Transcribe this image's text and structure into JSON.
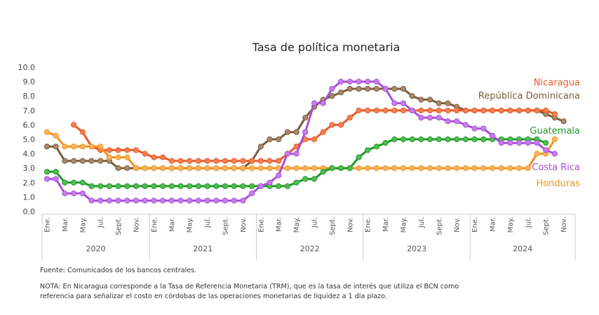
{
  "chart_data": {
    "type": "line",
    "title": "Tasa de política monetaria",
    "xlabel": "",
    "ylabel": "",
    "ylim": [
      0,
      10
    ],
    "yticks": [
      "0.0",
      "1.0",
      "2.0",
      "3.0",
      "4.0",
      "5.0",
      "6.0",
      "7.0",
      "8.0",
      "9.0",
      "10.0"
    ],
    "grid": false,
    "x_start": "Ene. 2020",
    "x_frequency": "monthly",
    "month_labels": [
      "Ene.",
      "Mar.",
      "May.",
      "Jul.",
      "Sept.",
      "Nov."
    ],
    "years": [
      "2020",
      "2021",
      "2022",
      "2023",
      "2024"
    ],
    "series": [
      {
        "name": "República Dominicana",
        "color": "#7b5b3a",
        "fill": "#a88a6a",
        "values": [
          4.5,
          4.5,
          3.5,
          3.5,
          3.5,
          3.5,
          3.5,
          3.5,
          3.0,
          3.0,
          3.0,
          3.0,
          3.0,
          3.0,
          3.0,
          3.0,
          3.0,
          3.0,
          3.0,
          3.0,
          3.0,
          3.0,
          3.0,
          3.5,
          4.5,
          5.0,
          5.0,
          5.5,
          5.5,
          6.5,
          7.25,
          7.75,
          8.0,
          8.25,
          8.5,
          8.5,
          8.5,
          8.5,
          8.5,
          8.5,
          8.5,
          8.0,
          7.75,
          7.75,
          7.5,
          7.5,
          7.25,
          7.0,
          7.0,
          7.0,
          7.0,
          7.0,
          7.0,
          7.0,
          7.0,
          7.0,
          6.75,
          6.5,
          6.25
        ]
      },
      {
        "name": "Nicaragua",
        "color": "#e8592a",
        "fill": "#f5814f",
        "values": [
          null,
          null,
          null,
          6.0,
          5.5,
          4.5,
          4.25,
          4.25,
          4.25,
          4.25,
          4.25,
          4.0,
          3.75,
          3.75,
          3.5,
          3.5,
          3.5,
          3.5,
          3.5,
          3.5,
          3.5,
          3.5,
          3.5,
          3.5,
          3.5,
          3.5,
          3.5,
          4.0,
          4.5,
          5.0,
          5.0,
          5.5,
          6.0,
          6.0,
          6.5,
          7.0,
          7.0,
          7.0,
          7.0,
          7.0,
          7.0,
          7.0,
          7.0,
          7.0,
          7.0,
          7.0,
          7.0,
          7.0,
          7.0,
          7.0,
          7.0,
          7.0,
          7.0,
          7.0,
          7.0,
          7.0,
          7.0,
          6.75,
          null
        ]
      },
      {
        "name": "Honduras",
        "color": "#f0921a",
        "fill": "#f8b563",
        "values": [
          5.5,
          5.25,
          4.5,
          4.5,
          4.5,
          4.5,
          4.5,
          3.75,
          3.75,
          3.75,
          3.0,
          3.0,
          3.0,
          3.0,
          3.0,
          3.0,
          3.0,
          3.0,
          3.0,
          3.0,
          3.0,
          3.0,
          3.0,
          3.0,
          3.0,
          3.0,
          3.0,
          3.0,
          3.0,
          3.0,
          3.0,
          3.0,
          3.0,
          3.0,
          3.0,
          3.0,
          3.0,
          3.0,
          3.0,
          3.0,
          3.0,
          3.0,
          3.0,
          3.0,
          3.0,
          3.0,
          3.0,
          3.0,
          3.0,
          3.0,
          3.0,
          3.0,
          3.0,
          3.0,
          3.0,
          4.0,
          4.0,
          5.0,
          null
        ]
      },
      {
        "name": "Guatemala",
        "color": "#23962a",
        "fill": "#4cc04c",
        "values": [
          2.75,
          2.75,
          2.0,
          2.0,
          2.0,
          1.75,
          1.75,
          1.75,
          1.75,
          1.75,
          1.75,
          1.75,
          1.75,
          1.75,
          1.75,
          1.75,
          1.75,
          1.75,
          1.75,
          1.75,
          1.75,
          1.75,
          1.75,
          1.75,
          1.75,
          1.75,
          1.75,
          1.75,
          2.0,
          2.25,
          2.25,
          2.75,
          3.0,
          3.0,
          3.0,
          3.75,
          4.25,
          4.5,
          4.75,
          5.0,
          5.0,
          5.0,
          5.0,
          5.0,
          5.0,
          5.0,
          5.0,
          5.0,
          5.0,
          5.0,
          5.0,
          5.0,
          5.0,
          5.0,
          5.0,
          5.0,
          4.75,
          null,
          null
        ]
      },
      {
        "name": "Costa Rica",
        "color": "#a94fd6",
        "fill": "#c57ff0",
        "values": [
          2.25,
          2.25,
          1.25,
          1.25,
          1.25,
          0.75,
          0.75,
          0.75,
          0.75,
          0.75,
          0.75,
          0.75,
          0.75,
          0.75,
          0.75,
          0.75,
          0.75,
          0.75,
          0.75,
          0.75,
          0.75,
          0.75,
          0.75,
          1.25,
          1.75,
          2.0,
          2.5,
          4.0,
          4.0,
          5.5,
          7.5,
          7.5,
          8.5,
          9.0,
          9.0,
          9.0,
          9.0,
          9.0,
          8.5,
          7.5,
          7.5,
          7.0,
          6.5,
          6.5,
          6.5,
          6.25,
          6.25,
          6.0,
          5.75,
          5.75,
          5.25,
          4.75,
          4.75,
          4.75,
          4.75,
          4.75,
          4.25,
          4.0,
          null
        ]
      }
    ],
    "legend": {
      "placement": "right-end-labels",
      "labels": [
        "Nicaragua",
        "República Dominicana",
        "Guatemala",
        "Costa Rica",
        "Honduras"
      ]
    }
  },
  "notes": {
    "source": "Fuente: Comunicados de los bancos centrales.",
    "note": "NOTA: En Nicaragua corresponde a la Tasa de Referencia Monetaria (TRM), que es la tasa de interés que utiliza el BCN como referencia para señalizar el costo en córdobas de las operaciones monetarias de liquidez a 1 día plazo."
  }
}
